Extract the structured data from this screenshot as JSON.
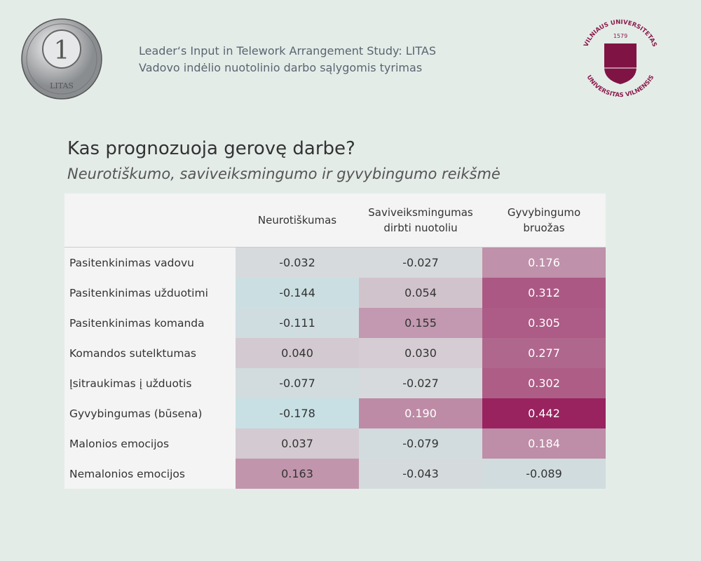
{
  "header": {
    "title_en": "Leader‘s Input in Telework Arrangement Study: LITAS",
    "title_lt": "Vadovo indėlio nuotolinio darbo sąlygomis tyrimas",
    "coin_text": "LITAS",
    "coin_value": "1",
    "logo_text_top": "VILNIAUS UNIVERSITETAS",
    "logo_year": "1579",
    "logo_text_bottom": "UNIVERSITAS VILNENSIS"
  },
  "chart_data": {
    "type": "heatmap",
    "title": "Kas prognozuoja gerovę darbe?",
    "subtitle": "Neurotiškumo, saviveiksmingumo ir gyvybingumo reikšmė",
    "columns": [
      "Neurotiškumas",
      "Saviveiksmingumas dirbti nuotoliu",
      "Gyvybingumo bruožas"
    ],
    "rows": [
      "Pasitenkinimas vadovu",
      "Pasitenkinimas užduotimi",
      "Pasitenkinimas komanda",
      "Komandos sutelktumas",
      "Įsitraukimas į užduotis",
      "Gyvybingumas (būsena)",
      "Malonios emocijos",
      "Nemalonios emocijos"
    ],
    "values": [
      [
        "-0.032",
        "-0.027",
        "0.176"
      ],
      [
        "-0.144",
        "0.054",
        "0.312"
      ],
      [
        "-0.111",
        "0.155",
        "0.305"
      ],
      [
        "0.040",
        "0.030",
        "0.277"
      ],
      [
        "-0.077",
        "-0.027",
        "0.302"
      ],
      [
        "-0.178",
        "0.190",
        "0.442"
      ],
      [
        "0.037",
        "-0.079",
        "0.184"
      ],
      [
        "0.163",
        "-0.043",
        "-0.089"
      ]
    ],
    "colors": {
      "negative": "#c8e0e4",
      "zero": "#d9d9db",
      "positive": "#97205d"
    }
  }
}
